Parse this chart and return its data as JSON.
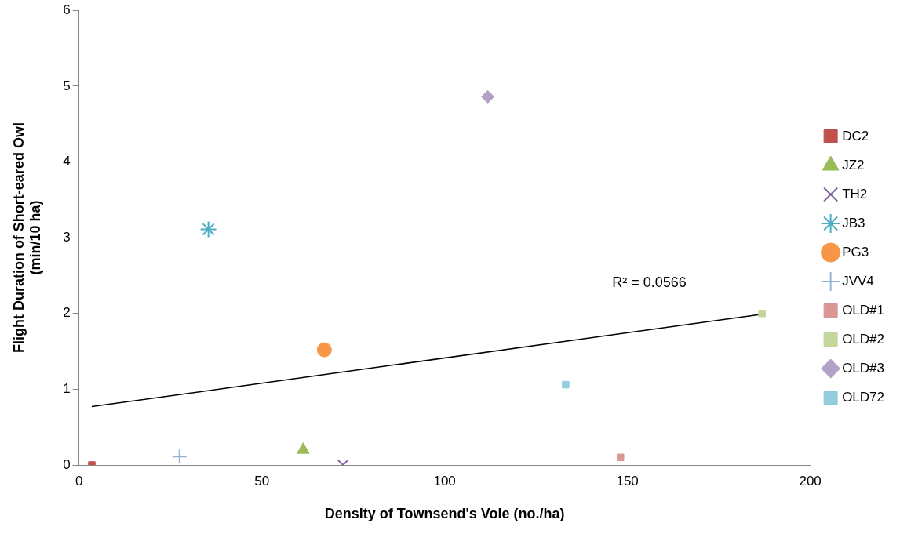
{
  "chart_data": {
    "type": "scatter",
    "xlabel": "Density of Townsend's Vole (no./ha)",
    "ylabel": "Flight Duration of Short-eared Owl\n(min/10 ha)",
    "xlim": [
      0,
      200
    ],
    "xticks": [
      0,
      50,
      100,
      150,
      200
    ],
    "ylim": [
      0,
      6
    ],
    "yticks": [
      0,
      1,
      2,
      3,
      4,
      5,
      6
    ],
    "grid": false,
    "legend": "right",
    "series": [
      {
        "name": "DC2",
        "color": "#c0504d",
        "marker": "square",
        "x": [
          3.5
        ],
        "values": [
          0
        ]
      },
      {
        "name": "JZ2",
        "color": "#9bbb59",
        "marker": "triangle",
        "x": [
          61.3
        ],
        "values": [
          0.2
        ]
      },
      {
        "name": "TH2",
        "color": "#8064a2",
        "marker": "cross",
        "x": [
          72.2
        ],
        "values": [
          0
        ]
      },
      {
        "name": "JB3",
        "color": "#4bacc6",
        "x": [
          35.4
        ],
        "values": [
          3.11
        ]
      },
      {
        "name": "PG3",
        "color": "#f79646",
        "marker": "circle",
        "x": [
          67.1
        ],
        "values": [
          1.52
        ]
      },
      {
        "name": "JVV4",
        "color": "#95b3d7",
        "marker": "plus",
        "x": [
          27.5
        ],
        "values": [
          0.11
        ]
      },
      {
        "name": "OLD#1",
        "color": "#d99694",
        "marker": "square",
        "x": [
          148.1
        ],
        "values": [
          0.1
        ]
      },
      {
        "name": "OLD#2",
        "color": "#c3d69b",
        "marker": "square",
        "x": [
          186.8
        ],
        "values": [
          2.0
        ]
      },
      {
        "name": "OLD#3",
        "color": "#b3a2c7",
        "marker": "diamond",
        "x": [
          111.8
        ],
        "values": [
          4.86
        ]
      },
      {
        "name": "OLD72",
        "color": "#93cddd",
        "marker": "square",
        "x": [
          133.1
        ],
        "values": [
          1.06
        ]
      },
      {
        "type": "line",
        "color": "#000000",
        "marker": "none",
        "x": [
          3.5,
          186.8
        ],
        "values": [
          0.77,
          1.99
        ]
      }
    ],
    "annotations": [
      "R² = 0.0566"
    ]
  }
}
